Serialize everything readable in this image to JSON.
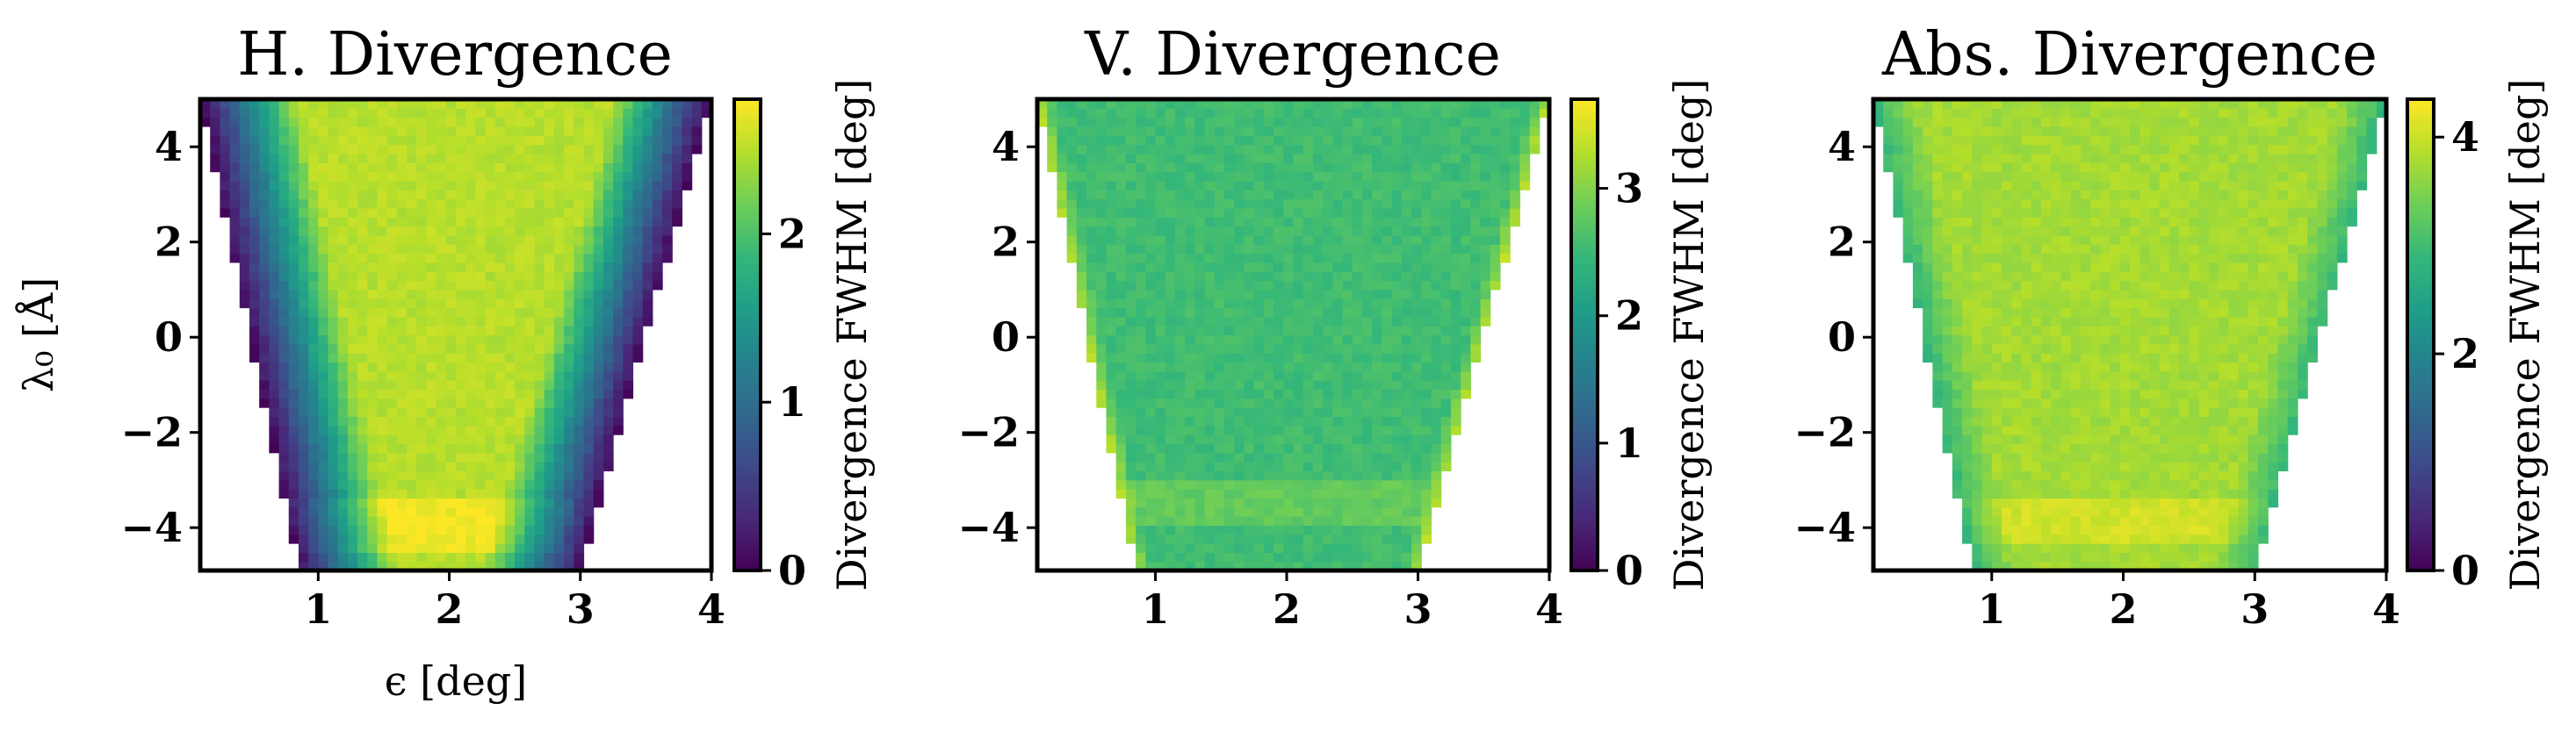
{
  "colors": {
    "viridis": [
      "#440154",
      "#482878",
      "#3e4989",
      "#31688e",
      "#26828e",
      "#1f9e89",
      "#35b779",
      "#6ece58",
      "#b5de2b",
      "#fde725"
    ],
    "frame": "#000000",
    "background": "#ffffff"
  },
  "chart_data": [
    {
      "type": "heatmap",
      "title": "H. Divergence",
      "xlabel": "ϵ [deg]",
      "ylabel": "λ₀ [Å]",
      "xlim": [
        0.1,
        4.0
      ],
      "ylim": [
        -4.9,
        5.0
      ],
      "xticks": [
        1,
        2,
        3,
        4
      ],
      "xtick_labels": [
        "1",
        "2",
        "3",
        "4"
      ],
      "yticks": [
        -4,
        -2,
        0,
        2,
        4
      ],
      "ytick_labels": [
        "−4",
        "−2",
        "0",
        "2",
        "4"
      ],
      "colorbar": {
        "label": "Divergence FWHM [deg]",
        "min": 0,
        "max": 2.8,
        "ticks": [
          0,
          1,
          2
        ],
        "tick_labels": [
          "0",
          "1",
          "2"
        ]
      },
      "valid_region": {
        "left_edge": {
          "at_y_min": 0.85,
          "at_y_max": 0.1
        },
        "right_edge": {
          "at_y_min": 3.0,
          "at_y_max": 4.0
        }
      },
      "field": {
        "plateau": 2.5,
        "bright_band": {
          "y_range": [
            -4.6,
            -3.4
          ],
          "value": 2.75
        },
        "edge_ramp": {
          "width": 0.75,
          "edge_value": 0.05
        }
      }
    },
    {
      "type": "heatmap",
      "title": "V. Divergence",
      "xlabel": "",
      "ylabel": "",
      "xlim": [
        0.1,
        4.0
      ],
      "ylim": [
        -4.9,
        5.0
      ],
      "xticks": [
        1,
        2,
        3,
        4
      ],
      "xtick_labels": [
        "1",
        "2",
        "3",
        "4"
      ],
      "yticks": [
        -4,
        -2,
        0,
        2,
        4
      ],
      "ytick_labels": [
        "−4",
        "−2",
        "0",
        "2",
        "4"
      ],
      "colorbar": {
        "label": "Divergence FWHM [deg]",
        "min": 0,
        "max": 3.7,
        "ticks": [
          0,
          1,
          2,
          3
        ],
        "tick_labels": [
          "0",
          "1",
          "2",
          "3"
        ]
      },
      "valid_region": {
        "left_edge": {
          "at_y_min": 0.85,
          "at_y_max": 0.1
        },
        "right_edge": {
          "at_y_min": 3.0,
          "at_y_max": 4.0
        }
      },
      "field": {
        "plateau": 2.55,
        "bright_band": {
          "y_range": [
            -4.0,
            -3.0
          ],
          "value": 2.8
        },
        "edge_ramp": {
          "width": 0.12,
          "edge_value": 3.3
        }
      }
    },
    {
      "type": "heatmap",
      "title": "Abs. Divergence",
      "xlabel": "",
      "ylabel": "",
      "xlim": [
        0.1,
        4.0
      ],
      "ylim": [
        -4.9,
        5.0
      ],
      "xticks": [
        1,
        2,
        3,
        4
      ],
      "xtick_labels": [
        "1",
        "2",
        "3",
        "4"
      ],
      "yticks": [
        -4,
        -2,
        0,
        2,
        4
      ],
      "ytick_labels": [
        "−4",
        "−2",
        "0",
        "2",
        "4"
      ],
      "colorbar": {
        "label": "Divergence FWHM [deg]",
        "min": 0,
        "max": 4.35,
        "ticks": [
          0,
          2,
          4
        ],
        "tick_labels": [
          "0",
          "2",
          "4"
        ]
      },
      "valid_region": {
        "left_edge": {
          "at_y_min": 0.85,
          "at_y_max": 0.1
        },
        "right_edge": {
          "at_y_min": 3.0,
          "at_y_max": 4.0
        }
      },
      "field": {
        "plateau": 3.75,
        "bright_band": {
          "y_range": [
            -4.4,
            -3.4
          ],
          "value": 4.05
        },
        "edge_ramp": {
          "width": 0.35,
          "edge_value": 2.9
        }
      }
    }
  ]
}
